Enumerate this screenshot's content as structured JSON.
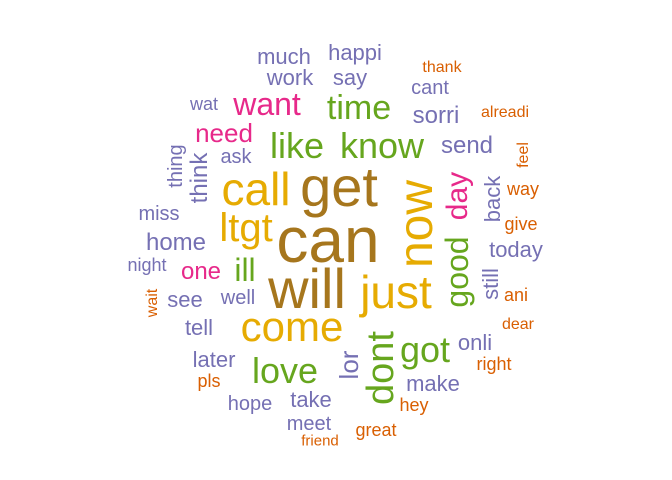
{
  "palette": {
    "brown": "#a6761d",
    "gold": "#e6ab02",
    "green": "#66a61e",
    "magenta": "#e7298a",
    "purple": "#7570b3",
    "orange": "#d95f02"
  },
  "words": [
    {
      "text": "can",
      "color": "brown"
    },
    {
      "text": "get",
      "color": "brown"
    },
    {
      "text": "will",
      "color": "brown"
    },
    {
      "text": "now",
      "color": "gold"
    },
    {
      "text": "call",
      "color": "gold"
    },
    {
      "text": "just",
      "color": "gold"
    },
    {
      "text": "come",
      "color": "gold"
    },
    {
      "text": "ltgt",
      "color": "gold"
    },
    {
      "text": "dont",
      "color": "green"
    },
    {
      "text": "like",
      "color": "green"
    },
    {
      "text": "know",
      "color": "green"
    },
    {
      "text": "time",
      "color": "green"
    },
    {
      "text": "love",
      "color": "green"
    },
    {
      "text": "got",
      "color": "green"
    },
    {
      "text": "good",
      "color": "green"
    },
    {
      "text": "ill",
      "color": "green"
    },
    {
      "text": "day",
      "color": "magenta"
    },
    {
      "text": "want",
      "color": "magenta"
    },
    {
      "text": "need",
      "color": "magenta"
    },
    {
      "text": "one",
      "color": "magenta"
    },
    {
      "text": "lor",
      "color": "purple"
    },
    {
      "text": "home",
      "color": "purple"
    },
    {
      "text": "sorri",
      "color": "purple"
    },
    {
      "text": "send",
      "color": "purple"
    },
    {
      "text": "think",
      "color": "purple"
    },
    {
      "text": "back",
      "color": "purple"
    },
    {
      "text": "today",
      "color": "purple"
    },
    {
      "text": "still",
      "color": "purple"
    },
    {
      "text": "much",
      "color": "purple"
    },
    {
      "text": "happi",
      "color": "purple"
    },
    {
      "text": "work",
      "color": "purple"
    },
    {
      "text": "say",
      "color": "purple"
    },
    {
      "text": "cant",
      "color": "purple"
    },
    {
      "text": "wat",
      "color": "purple"
    },
    {
      "text": "ask",
      "color": "purple"
    },
    {
      "text": "thing",
      "color": "purple"
    },
    {
      "text": "miss",
      "color": "purple"
    },
    {
      "text": "night",
      "color": "purple"
    },
    {
      "text": "see",
      "color": "purple"
    },
    {
      "text": "well",
      "color": "purple"
    },
    {
      "text": "tell",
      "color": "purple"
    },
    {
      "text": "onli",
      "color": "purple"
    },
    {
      "text": "later",
      "color": "purple"
    },
    {
      "text": "make",
      "color": "purple"
    },
    {
      "text": "hope",
      "color": "purple"
    },
    {
      "text": "take",
      "color": "purple"
    },
    {
      "text": "meet",
      "color": "purple"
    },
    {
      "text": "thank",
      "color": "orange"
    },
    {
      "text": "alreadi",
      "color": "orange"
    },
    {
      "text": "feel",
      "color": "orange"
    },
    {
      "text": "way",
      "color": "orange"
    },
    {
      "text": "give",
      "color": "orange"
    },
    {
      "text": "wait",
      "color": "orange"
    },
    {
      "text": "ani",
      "color": "orange"
    },
    {
      "text": "dear",
      "color": "orange"
    },
    {
      "text": "right",
      "color": "orange"
    },
    {
      "text": "pls",
      "color": "orange"
    },
    {
      "text": "hey",
      "color": "orange"
    },
    {
      "text": "great",
      "color": "orange"
    },
    {
      "text": "friend",
      "color": "orange"
    }
  ]
}
